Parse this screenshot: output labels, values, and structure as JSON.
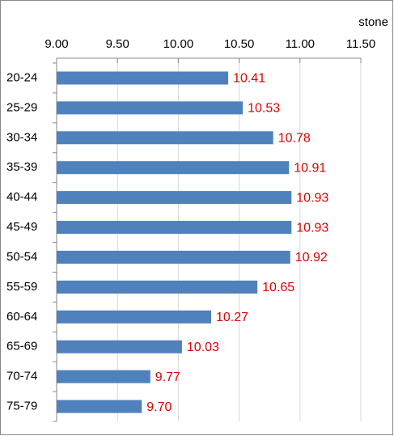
{
  "chart_data": {
    "type": "bar",
    "orientation": "horizontal",
    "x_label": "stone",
    "categories": [
      "20-24",
      "25-29",
      "30-34",
      "35-39",
      "40-44",
      "45-49",
      "50-54",
      "55-59",
      "60-64",
      "65-69",
      "70-74",
      "75-79"
    ],
    "values": [
      10.41,
      10.53,
      10.78,
      10.91,
      10.93,
      10.93,
      10.92,
      10.65,
      10.27,
      10.03,
      9.77,
      9.7
    ],
    "value_labels": [
      "10.41",
      "10.53",
      "10.78",
      "10.91",
      "10.93",
      "10.93",
      "10.92",
      "10.65",
      "10.27",
      "10.03",
      "9.77",
      "9.70"
    ],
    "color": "#4f81bd",
    "label_color": "#e00000",
    "xlim": [
      9,
      11.5
    ],
    "xticks": [
      {
        "value": 9,
        "label": "9.00"
      },
      {
        "value": 9.5,
        "label": "9.50"
      },
      {
        "value": 10,
        "label": "10.00"
      },
      {
        "value": 10.5,
        "label": "10.50"
      },
      {
        "value": 11,
        "label": "11.00"
      },
      {
        "value": 11.5,
        "label": "11.50"
      }
    ],
    "grid": true
  }
}
